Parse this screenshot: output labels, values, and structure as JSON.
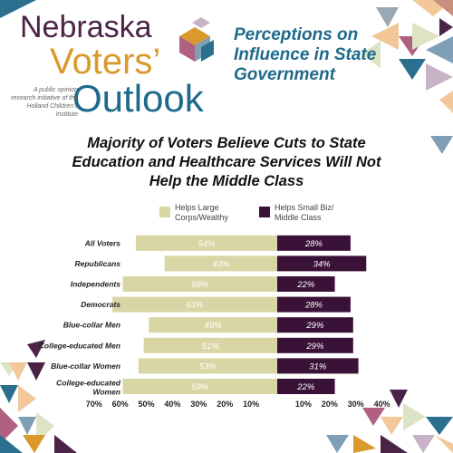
{
  "header": {
    "brand_line1": "Nebraska",
    "brand_line2": "Voters’",
    "brand_line3": "Outlook",
    "tagline": "A public opinion research initiative of the Holland Children's Institute",
    "perceptions_title": "Perceptions on Influence in State Government"
  },
  "colors": {
    "large_corps": "#d9d6a5",
    "small_biz": "#3a1237",
    "brand_purple": "#4a2346",
    "brand_gold": "#d99a2b",
    "brand_teal": "#1e6a8a"
  },
  "chart_data": {
    "type": "bar",
    "orientation": "horizontal-diverging",
    "title": "Majority of Voters Believe Cuts to State Education and Healthcare Services Will Not Help the Middle Class",
    "categories": [
      "All Voters",
      "Republicans",
      "Independents",
      "Democrats",
      "Blue-collar Men",
      "College-educated Men",
      "Blue-collar Women",
      "College-educated Women"
    ],
    "series": [
      {
        "name": "Helps Large Corps/Wealthy",
        "values": [
          54,
          43,
          59,
          63,
          49,
          51,
          53,
          59
        ],
        "direction": "left"
      },
      {
        "name": "Helps Small Biz/ Middle Class",
        "values": [
          28,
          34,
          22,
          28,
          29,
          29,
          31,
          22
        ],
        "direction": "right"
      }
    ],
    "left_ticks": [
      "70%",
      "60%",
      "50%",
      "40%",
      "30%",
      "20%",
      "10%"
    ],
    "right_ticks": [
      "10%",
      "20%",
      "30%",
      "40%"
    ],
    "left_range": [
      0,
      70
    ],
    "right_range": [
      0,
      40
    ],
    "legend_placement": "top",
    "legend": [
      "Helps Large\nCorps/Wealthy",
      "Helps Small Biz/\nMiddle Class"
    ]
  }
}
